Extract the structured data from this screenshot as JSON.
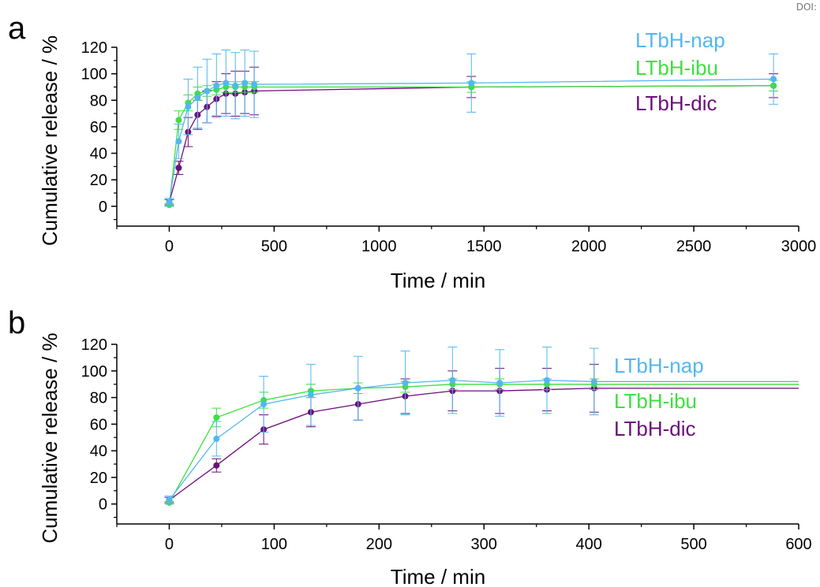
{
  "doi": "DOI:",
  "colors": {
    "nap": "#52b7ef",
    "ibu": "#3ee03e",
    "dic": "#6b0f7a"
  },
  "chart_data": [
    {
      "panel": "a",
      "type": "line",
      "xlabel": "Time / min",
      "ylabel": "Cumulative release / %",
      "xlim": [
        -250,
        3000
      ],
      "ylim": [
        -15,
        120
      ],
      "xticks": [
        0,
        500,
        1000,
        1500,
        2000,
        2500,
        3000
      ],
      "yticks": [
        0,
        20,
        40,
        60,
        80,
        100,
        120
      ],
      "x": [
        0,
        45,
        90,
        135,
        180,
        225,
        270,
        315,
        360,
        405,
        1440,
        2880
      ],
      "series": [
        {
          "name": "LTbH-nap",
          "color": "#52b7ef",
          "values": [
            3,
            49,
            75,
            82,
            87,
            91,
            93,
            91,
            93,
            92,
            93,
            96
          ],
          "errors": [
            3,
            13,
            21,
            23,
            24,
            24,
            25,
            25,
            25,
            25,
            22,
            19
          ]
        },
        {
          "name": "LTbH-ibu",
          "color": "#3ee03e",
          "values": [
            1,
            65,
            78,
            85,
            87,
            88,
            90,
            90,
            90,
            90,
            90,
            91
          ],
          "errors": [
            1,
            7,
            6,
            5,
            4,
            4,
            4,
            4,
            4,
            4,
            4,
            4
          ]
        },
        {
          "name": "LTbH-dic",
          "color": "#6b0f7a",
          "values": [
            3,
            29,
            56,
            69,
            75,
            81,
            85,
            85,
            86,
            87,
            90,
            91
          ],
          "errors": [
            2,
            5,
            11,
            11,
            12,
            13,
            15,
            17,
            16,
            18,
            8,
            9
          ]
        }
      ],
      "legend_order": [
        "LTbH-nap",
        "LTbH-ibu",
        "LTbH-dic"
      ]
    },
    {
      "panel": "b",
      "type": "line",
      "xlabel": "Time / min",
      "ylabel": "Cumulative release / %",
      "xlim": [
        -50,
        600
      ],
      "ylim": [
        -15,
        120
      ],
      "xticks": [
        0,
        100,
        200,
        300,
        400,
        500,
        600
      ],
      "yticks": [
        0,
        20,
        40,
        60,
        80,
        100,
        120
      ],
      "x": [
        0,
        45,
        90,
        135,
        180,
        225,
        270,
        315,
        360,
        405
      ],
      "series": [
        {
          "name": "LTbH-nap",
          "color": "#52b7ef",
          "values": [
            3,
            49,
            75,
            82,
            87,
            91,
            93,
            91,
            93,
            92
          ],
          "errors": [
            3,
            13,
            21,
            23,
            24,
            24,
            25,
            25,
            25,
            25
          ]
        },
        {
          "name": "LTbH-ibu",
          "color": "#3ee03e",
          "values": [
            1,
            65,
            78,
            85,
            87,
            88,
            90,
            90,
            90,
            90
          ],
          "errors": [
            1,
            7,
            6,
            5,
            4,
            4,
            4,
            4,
            4,
            4
          ]
        },
        {
          "name": "LTbH-dic",
          "color": "#6b0f7a",
          "values": [
            3,
            29,
            56,
            69,
            75,
            81,
            85,
            85,
            86,
            87
          ],
          "errors": [
            2,
            5,
            11,
            11,
            12,
            13,
            15,
            17,
            16,
            18
          ]
        }
      ],
      "legend_order": [
        "LTbH-nap",
        "LTbH-ibu",
        "LTbH-dic"
      ]
    }
  ]
}
